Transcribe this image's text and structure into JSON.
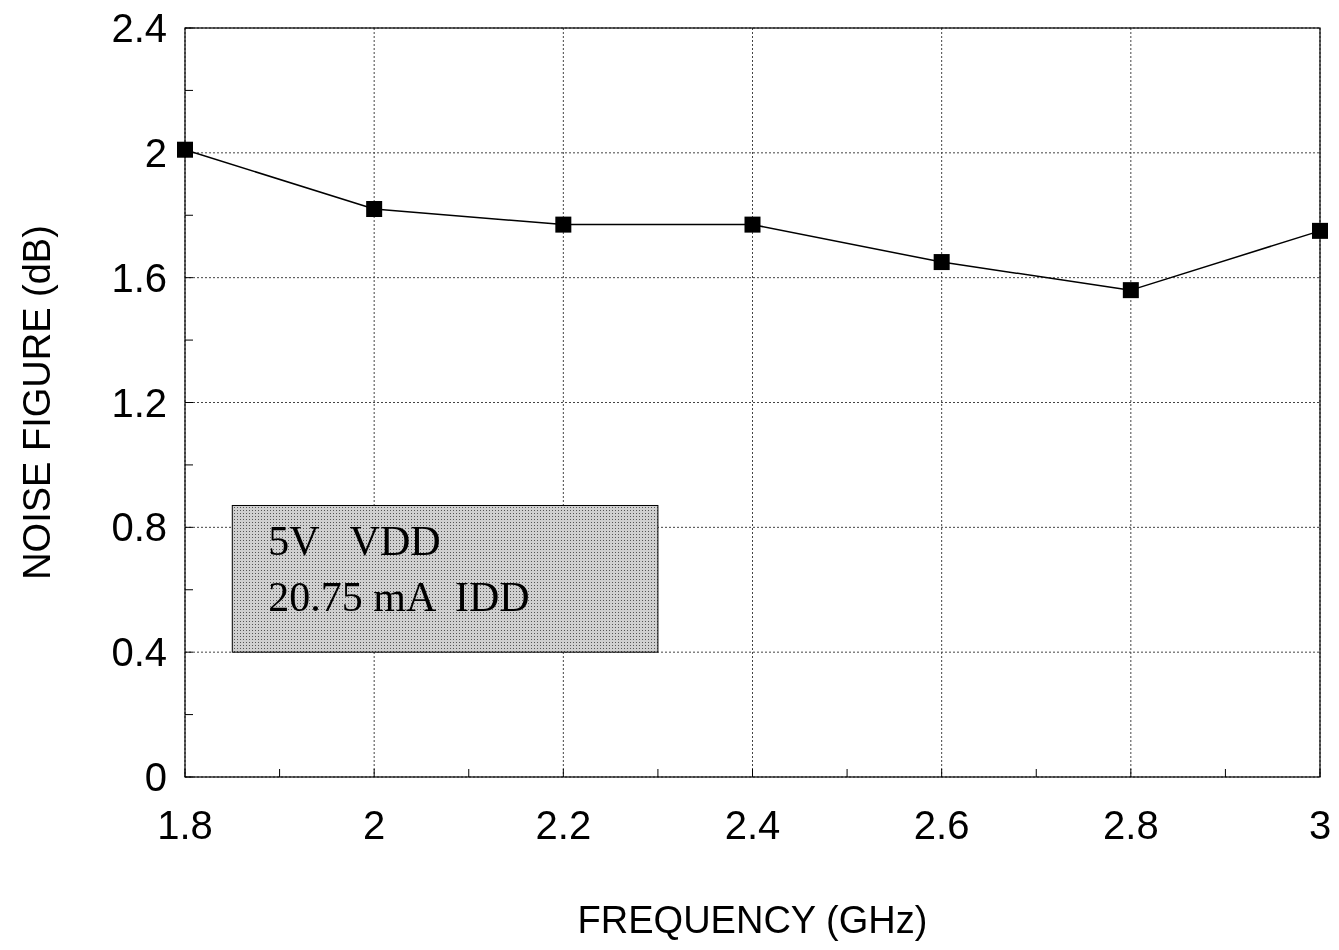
{
  "chart_data": {
    "type": "line",
    "xlabel": "FREQUENCY (GHz)",
    "ylabel": "NOISE FIGURE (dB)",
    "x": [
      1.8,
      2.0,
      2.2,
      2.4,
      2.6,
      2.8,
      3.0
    ],
    "series": [
      {
        "color": "#000000",
        "values": [
          2.01,
          1.82,
          1.77,
          1.77,
          1.65,
          1.56,
          1.75
        ]
      }
    ],
    "xlim": [
      1.8,
      3.0
    ],
    "xticks": [
      1.8,
      {
        "value": 1.9,
        "label": null
      },
      2,
      {
        "value": 2.1,
        "label": null
      },
      2.2,
      {
        "value": 2.3,
        "label": null
      },
      2.4,
      {
        "value": 2.5,
        "label": null
      },
      2.6,
      {
        "value": 2.7,
        "label": null
      },
      2.8,
      {
        "value": 2.9,
        "label": null
      },
      3
    ],
    "ylim": [
      0,
      2.4
    ],
    "yticks": [
      0,
      {
        "value": 0.2,
        "label": null
      },
      0.4,
      {
        "value": 0.6,
        "label": null
      },
      0.8,
      {
        "value": 1.0,
        "label": null
      },
      1.2,
      {
        "value": 1.4,
        "label": null
      },
      1.6,
      {
        "value": 1.8,
        "label": null
      },
      2,
      {
        "value": 2.2,
        "label": null
      },
      2.4
    ],
    "annotations": [
      "5V   VDD",
      "20.75 mA  IDD"
    ],
    "grid": true,
    "marker": "square",
    "line_style": "solid"
  }
}
